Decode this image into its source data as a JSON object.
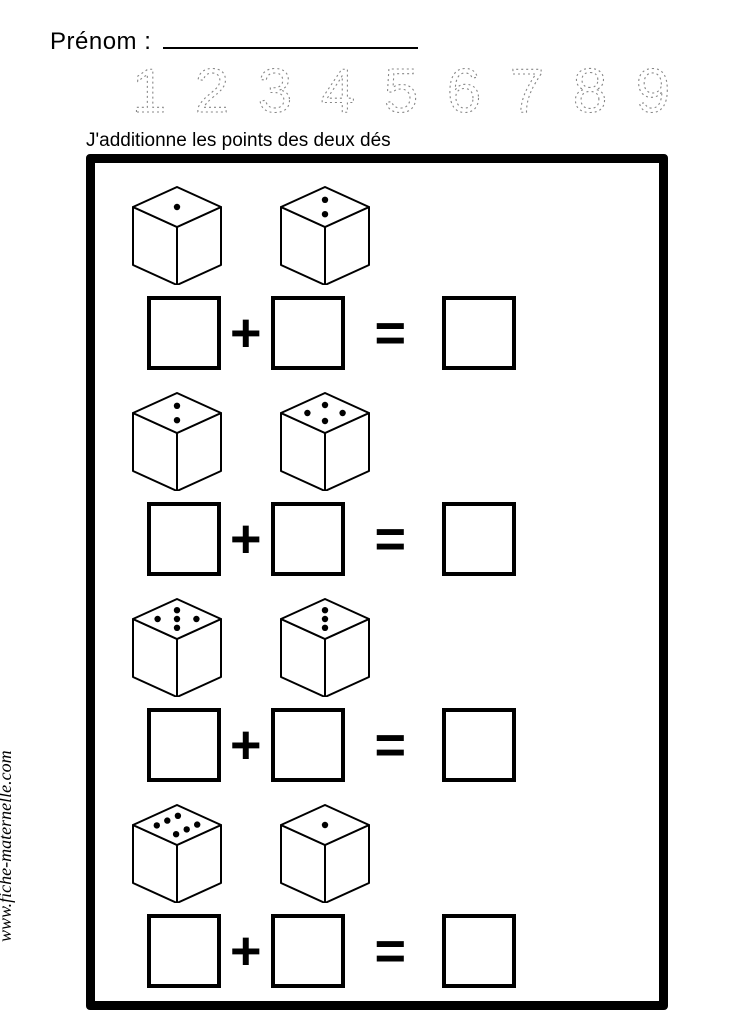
{
  "name_label": "Prénom :",
  "instruction": "J'additionne les points des deux dés",
  "tracing_numbers": [
    "1",
    "2",
    "3",
    "4",
    "5",
    "6",
    "7",
    "8",
    "9"
  ],
  "tracing_style": {
    "stroke": "#888888",
    "stroke_width": 1.1,
    "dash": "2,3",
    "glyph_width": 60,
    "glyph_height": 58,
    "gap": 3,
    "fontsize": 62
  },
  "die_style": {
    "stroke": "#000000",
    "stroke_width": 2,
    "fill": "#ffffff",
    "pip_fill": "#000000",
    "pip_radius": 3.2,
    "width": 112,
    "height": 104
  },
  "frame": {
    "border_color": "#000000",
    "border_width": 9,
    "background": "#ffffff"
  },
  "answer_box": {
    "size": 74,
    "border_width": 4,
    "border_color": "#000000"
  },
  "operators": {
    "plus": "+",
    "equals": "="
  },
  "problems": [
    {
      "die1": 1,
      "die2": 2
    },
    {
      "die1": 2,
      "die2": 4
    },
    {
      "die1": 5,
      "die2": 3
    },
    {
      "die1": 6,
      "die2": 1
    }
  ],
  "watermark": "www.fiche-maternelle.com",
  "colors": {
    "page_bg": "#ffffff",
    "text": "#000000",
    "tracing": "#888888"
  }
}
